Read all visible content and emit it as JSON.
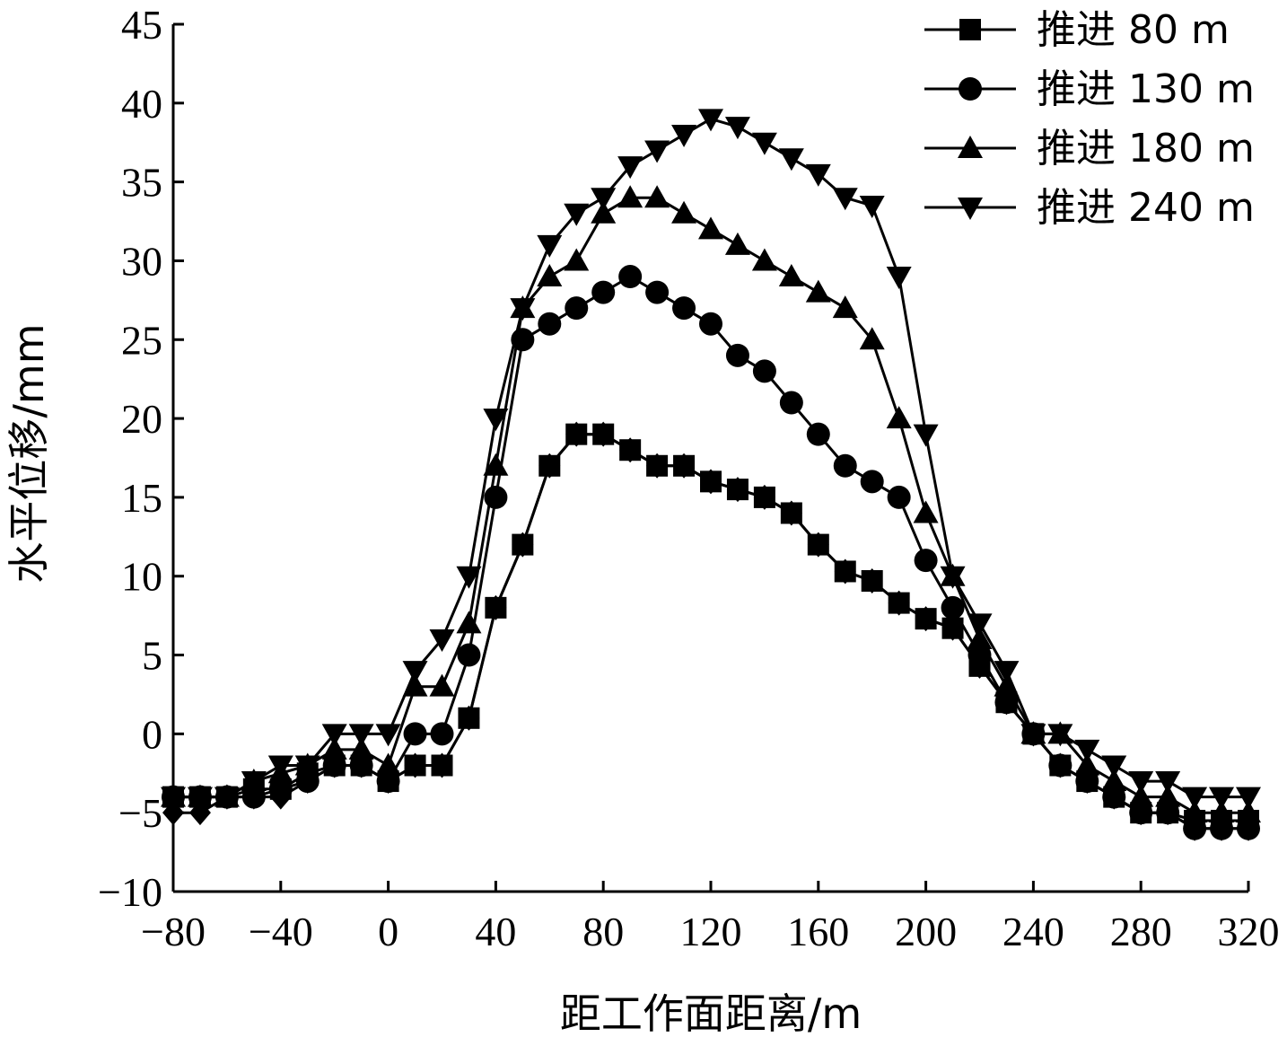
{
  "chart_data": {
    "type": "line",
    "title": "",
    "xlabel": "距工作面距离/m",
    "ylabel": "水平位移/mm",
    "xlim": [
      -80,
      320
    ],
    "ylim": [
      -10,
      45
    ],
    "xticks": [
      -80,
      -40,
      0,
      40,
      80,
      120,
      160,
      200,
      240,
      280,
      320
    ],
    "yticks": [
      -10,
      -5,
      0,
      5,
      10,
      15,
      20,
      25,
      30,
      35,
      40,
      45
    ],
    "xtick_labels": [
      "−80",
      "−40",
      "0",
      "40",
      "80",
      "120",
      "160",
      "200",
      "240",
      "280",
      "320"
    ],
    "ytick_labels": [
      "−10",
      "−5",
      "0",
      "5",
      "10",
      "15",
      "20",
      "25",
      "30",
      "35",
      "40",
      "45"
    ],
    "grid": false,
    "legend_position": "top-right",
    "x": [
      -80,
      -70,
      -60,
      -50,
      -40,
      -30,
      -20,
      -10,
      0,
      10,
      20,
      30,
      40,
      50,
      60,
      70,
      80,
      90,
      100,
      110,
      120,
      130,
      140,
      150,
      160,
      170,
      180,
      190,
      200,
      210,
      220,
      230,
      240,
      250,
      260,
      270,
      280,
      290,
      300,
      310,
      320
    ],
    "series": [
      {
        "name": "推进 80 m",
        "marker": "square",
        "values": [
          -4,
          -4,
          -4,
          -3.5,
          -3.5,
          -2.5,
          -2,
          -2,
          -3,
          -2,
          -2,
          1,
          8,
          12,
          17,
          19,
          19,
          18,
          17,
          17,
          16,
          15.5,
          15,
          14,
          12,
          10.3,
          9.7,
          8.3,
          7.3,
          6.7,
          4.3,
          2,
          0,
          -2,
          -3,
          -4,
          -5,
          -5,
          -5.5,
          -5.5,
          -5.5
        ]
      },
      {
        "name": "推进 130 m",
        "marker": "circle",
        "values": [
          -4,
          -4,
          -4,
          -4,
          -3.5,
          -3,
          -2,
          -2,
          -3,
          0,
          0,
          5,
          15,
          25,
          26,
          27,
          28,
          29,
          28,
          27,
          26,
          24,
          23,
          21,
          19,
          17,
          16,
          15,
          11,
          8,
          5,
          2,
          0,
          -2,
          -3,
          -4,
          -5,
          -5,
          -6,
          -6,
          -6
        ]
      },
      {
        "name": "推进 180 m",
        "marker": "triangle-up",
        "values": [
          -4,
          -4,
          -4,
          -3,
          -2.5,
          -2,
          -1,
          -1,
          -2,
          3,
          3,
          7,
          17,
          27,
          29,
          30,
          33,
          34,
          34,
          33,
          32,
          31,
          30,
          29,
          28,
          27,
          25,
          20,
          14,
          10,
          6,
          3,
          0,
          0,
          -2,
          -3,
          -4,
          -4,
          -5,
          -5,
          -5
        ]
      },
      {
        "name": "推进 240 m",
        "marker": "triangle-down",
        "values": [
          -4,
          -4,
          -4,
          -3,
          -2,
          -2,
          0,
          0,
          0,
          4,
          6,
          10,
          20,
          27,
          31,
          33,
          34,
          36,
          37,
          38,
          39,
          38.5,
          37.5,
          36.5,
          35.5,
          34,
          33.5,
          29,
          19,
          10,
          7,
          4,
          0,
          0,
          -1,
          -2,
          -3,
          -3,
          -4,
          -4,
          -4
        ]
      },
      {
        "name": "",
        "marker": "diamond",
        "values": [
          -5,
          -5,
          -4,
          -4,
          -4,
          -3,
          -2,
          -2,
          -3,
          -2,
          -2,
          1,
          8,
          12,
          17,
          19,
          19,
          18,
          17,
          17,
          16,
          15.5,
          15,
          14,
          12,
          10.3,
          9.7,
          8.3,
          7.3,
          6.7,
          4.3,
          2,
          0,
          -2,
          -3,
          -4,
          -5,
          -5,
          -6,
          -6,
          -6
        ]
      }
    ]
  }
}
